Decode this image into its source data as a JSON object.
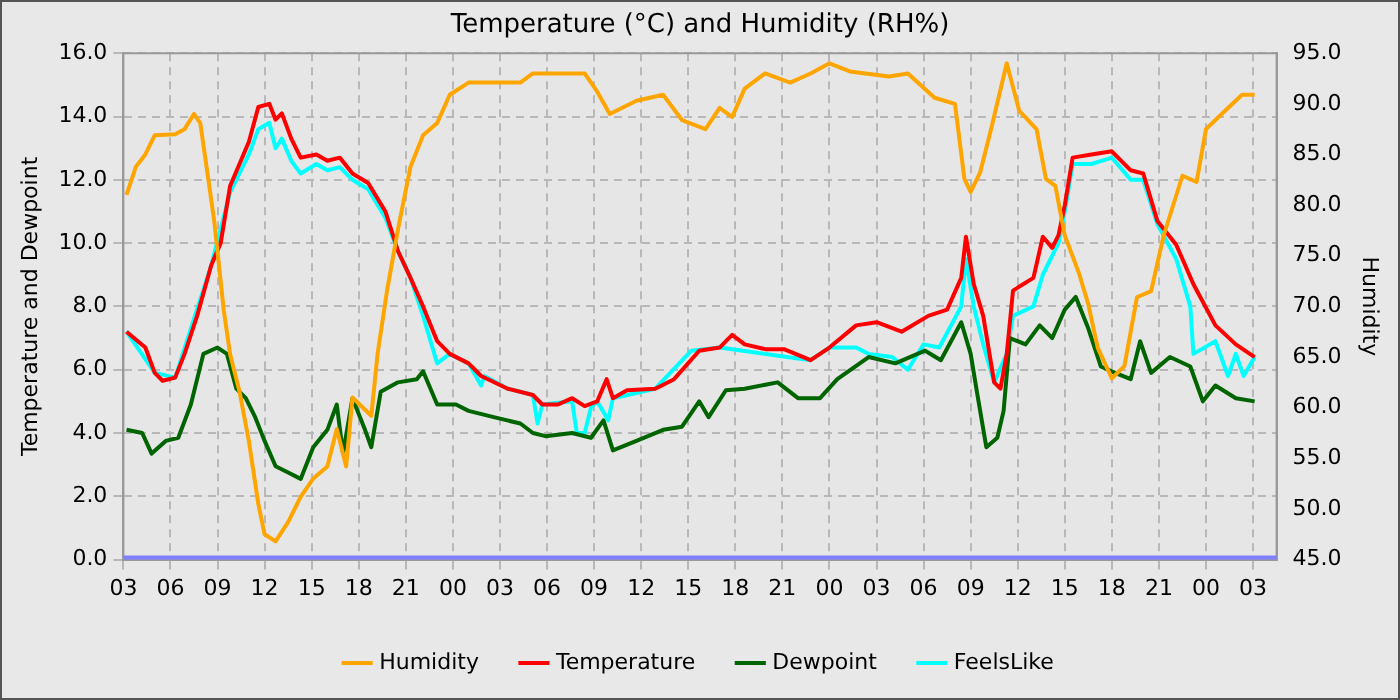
{
  "chart_data": {
    "type": "line",
    "title": "Temperature (°C) and Humidity (RH%)",
    "ylabel": "Temperature and Dewpoint",
    "y2label": "Humidity",
    "xlim": [
      3,
      76.5
    ],
    "xticks": [
      {
        "value": 3,
        "label": "03"
      },
      {
        "value": 6,
        "label": "06"
      },
      {
        "value": 9,
        "label": "09"
      },
      {
        "value": 12,
        "label": "12"
      },
      {
        "value": 15,
        "label": "15"
      },
      {
        "value": 18,
        "label": "18"
      },
      {
        "value": 21,
        "label": "21"
      },
      {
        "value": 24,
        "label": "00"
      },
      {
        "value": 27,
        "label": "03"
      },
      {
        "value": 30,
        "label": "06"
      },
      {
        "value": 33,
        "label": "09"
      },
      {
        "value": 36,
        "label": "12"
      },
      {
        "value": 39,
        "label": "15"
      },
      {
        "value": 42,
        "label": "18"
      },
      {
        "value": 45,
        "label": "21"
      },
      {
        "value": 48,
        "label": "00"
      },
      {
        "value": 51,
        "label": "03"
      },
      {
        "value": 54,
        "label": "06"
      },
      {
        "value": 57,
        "label": "09"
      },
      {
        "value": 60,
        "label": "12"
      },
      {
        "value": 63,
        "label": "15"
      },
      {
        "value": 66,
        "label": "18"
      },
      {
        "value": 69,
        "label": "21"
      },
      {
        "value": 72,
        "label": "00"
      },
      {
        "value": 75,
        "label": "03"
      }
    ],
    "ylim": [
      0,
      16
    ],
    "yticks": [
      {
        "value": 0,
        "label": "0.0"
      },
      {
        "value": 2,
        "label": "2.0"
      },
      {
        "value": 4,
        "label": "4.0"
      },
      {
        "value": 6,
        "label": "6.0"
      },
      {
        "value": 8,
        "label": "8.0"
      },
      {
        "value": 10,
        "label": "10.0"
      },
      {
        "value": 12,
        "label": "12.0"
      },
      {
        "value": 14,
        "label": "14.0"
      },
      {
        "value": 16,
        "label": "16.0"
      }
    ],
    "y2lim": [
      45,
      95
    ],
    "y2ticks": [
      {
        "value": 45,
        "label": "45.0"
      },
      {
        "value": 50,
        "label": "50.0"
      },
      {
        "value": 55,
        "label": "55.0"
      },
      {
        "value": 60,
        "label": "60.0"
      },
      {
        "value": 65,
        "label": "65.0"
      },
      {
        "value": 70,
        "label": "70.0"
      },
      {
        "value": 75,
        "label": "75.0"
      },
      {
        "value": 80,
        "label": "80.0"
      },
      {
        "value": 85,
        "label": "85.0"
      },
      {
        "value": 90,
        "label": "90.0"
      },
      {
        "value": 95,
        "label": "95.0"
      }
    ],
    "grid": true,
    "legend": "bottom",
    "marker": "none",
    "line_style": "solid",
    "ref_lines": [
      {
        "axis": "y",
        "value": 0,
        "color": "#8080ff"
      }
    ],
    "series": [
      {
        "name": "FeelsLike",
        "color": "#00ffff",
        "x": [
          3.2,
          5,
          6.3,
          8.6,
          9.8,
          10.4,
          11,
          11.6,
          12.3,
          12.7,
          13.1,
          13.7,
          14.3,
          15.3,
          16,
          16.8,
          17.6,
          18.6,
          19.7,
          20.5,
          21.3,
          22.1,
          23,
          23.8,
          25,
          25.8,
          26,
          27.5,
          29.1,
          29.4,
          29.7,
          31.6,
          31.9,
          32.4,
          32.8,
          33.2,
          33.9,
          34.2,
          36.9,
          39.2,
          41,
          46.8,
          48,
          49.7,
          50.5,
          52,
          53,
          54,
          55,
          56.4,
          56.7,
          57.2,
          57.8,
          58.5,
          59.3,
          59.7,
          61,
          61.6,
          62.2,
          62.6,
          63,
          63.5,
          64.7,
          66,
          67.2,
          68,
          68.9,
          70.1,
          71,
          71.2,
          72.6,
          73.4,
          73.9,
          74.4,
          75.1
        ],
        "values": [
          7.2,
          5.9,
          5.75,
          9.3,
          11.6,
          12.2,
          12.8,
          13.6,
          13.8,
          13,
          13.3,
          12.6,
          12.2,
          12.5,
          12.3,
          12.4,
          12,
          11.7,
          10.8,
          9.75,
          8.9,
          7.7,
          6.2,
          6.5,
          6.2,
          5.5,
          5.8,
          5.4,
          5.2,
          4.3,
          4.9,
          5,
          4,
          4,
          4.8,
          5,
          4.4,
          5.1,
          5.4,
          6.6,
          6.7,
          6.3,
          6.7,
          6.7,
          6.5,
          6.4,
          6,
          6.8,
          6.7,
          8,
          9.5,
          8,
          6.8,
          5.6,
          6.5,
          7.7,
          8,
          9,
          9.6,
          10,
          11,
          12.5,
          12.5,
          12.7,
          12,
          12,
          10.6,
          9.5,
          8,
          6.5,
          6.9,
          5.8,
          6.5,
          5.8,
          6.4
        ]
      },
      {
        "name": "Dewpoint",
        "color": "#006400",
        "x": [
          3.2,
          4.2,
          4.8,
          5.7,
          6.5,
          7.3,
          8.1,
          9,
          9.6,
          10.2,
          10.8,
          11.4,
          12,
          12.7,
          13.5,
          14.3,
          15.1,
          16,
          16.6,
          17,
          17.6,
          18.4,
          18.8,
          19.4,
          20.5,
          21.7,
          22.1,
          23,
          24.2,
          25,
          26.6,
          28.3,
          29.1,
          29.9,
          31.6,
          32.8,
          33.6,
          34.2,
          35.7,
          37.4,
          38.6,
          39.7,
          40.3,
          41.4,
          42.6,
          44.7,
          46,
          47.4,
          48.5,
          50.5,
          52.2,
          54.1,
          55.1,
          56.4,
          57,
          57.4,
          58,
          58.7,
          59.1,
          59.5,
          60.5,
          61.4,
          62.2,
          63,
          63.7,
          64.5,
          65.3,
          66.2,
          67.2,
          67.8,
          68.5,
          69.7,
          71,
          71.8,
          72.6,
          73.9,
          75.1
        ],
        "values": [
          4.1,
          4,
          3.35,
          3.75,
          3.85,
          4.9,
          6.5,
          6.7,
          6.5,
          5.4,
          5.1,
          4.5,
          3.75,
          2.95,
          2.75,
          2.55,
          3.55,
          4.1,
          4.9,
          3.35,
          5.1,
          4.1,
          3.55,
          5.3,
          5.6,
          5.7,
          5.95,
          4.9,
          4.9,
          4.7,
          4.5,
          4.3,
          4,
          3.9,
          4,
          3.85,
          4.4,
          3.45,
          3.75,
          4.1,
          4.2,
          5,
          4.5,
          5.35,
          5.4,
          5.6,
          5.1,
          5.1,
          5.7,
          6.4,
          6.2,
          6.6,
          6.3,
          7.5,
          6.5,
          5.3,
          3.55,
          3.85,
          4.7,
          7,
          6.8,
          7.4,
          7,
          7.9,
          8.3,
          7.3,
          6.1,
          5.9,
          5.7,
          6.9,
          5.9,
          6.4,
          6.1,
          5,
          5.5,
          5.1,
          5
        ]
      },
      {
        "name": "Temperature",
        "color": "#ff0000",
        "x": [
          3.2,
          4.4,
          5,
          5.5,
          6.3,
          6.9,
          7.7,
          8.6,
          9.2,
          9.8,
          10.4,
          11,
          11.6,
          12.3,
          12.7,
          13.1,
          13.7,
          14.3,
          15.3,
          16,
          16.8,
          17.6,
          18.6,
          19.7,
          20.5,
          21.3,
          22.1,
          23,
          23.8,
          25,
          25.8,
          27.5,
          29.1,
          29.7,
          30.7,
          31.6,
          32.4,
          33.2,
          33.8,
          34.2,
          35.1,
          36.9,
          38.1,
          39.7,
          41,
          41.8,
          42.6,
          43.9,
          45.1,
          46.8,
          48,
          49.7,
          51,
          52.6,
          54.3,
          55.5,
          56.4,
          56.7,
          57.2,
          57.8,
          58.5,
          58.9,
          59.3,
          59.7,
          61,
          61.6,
          62.2,
          62.6,
          63,
          63.5,
          64.7,
          66,
          67.2,
          68,
          68.9,
          70.1,
          71.2,
          72.6,
          73.9,
          75.1
        ],
        "values": [
          7.2,
          6.7,
          5.9,
          5.65,
          5.75,
          6.5,
          7.7,
          9.3,
          10,
          11.8,
          12.5,
          13.2,
          14.3,
          14.4,
          13.9,
          14.1,
          13.3,
          12.7,
          12.8,
          12.6,
          12.7,
          12.2,
          11.9,
          11,
          9.75,
          8.9,
          8,
          6.9,
          6.5,
          6.2,
          5.8,
          5.4,
          5.2,
          4.9,
          4.9,
          5.1,
          4.85,
          5,
          5.7,
          5.1,
          5.35,
          5.4,
          5.7,
          6.6,
          6.7,
          7.1,
          6.8,
          6.65,
          6.65,
          6.3,
          6.7,
          7.4,
          7.5,
          7.2,
          7.7,
          7.9,
          8.9,
          10.2,
          8.7,
          7.7,
          5.6,
          5.4,
          6.5,
          8.5,
          8.9,
          10.2,
          9.85,
          10.25,
          11.2,
          12.7,
          12.8,
          12.9,
          12.3,
          12.2,
          10.7,
          9.95,
          8.7,
          7.4,
          6.8,
          6.4
        ]
      },
      {
        "name": "Humidity",
        "color": "#ffa500",
        "axis": "y2",
        "x": [
          3.2,
          3.8,
          4.4,
          5,
          6.3,
          6.9,
          7.5,
          7.9,
          8.3,
          8.8,
          9.4,
          9.8,
          10.4,
          11,
          11.6,
          12,
          12.7,
          13.5,
          14.3,
          15.1,
          16,
          16.6,
          17.2,
          17.6,
          18.4,
          18.8,
          19.2,
          19.8,
          20.5,
          21.3,
          22.1,
          23,
          23.8,
          25,
          28.3,
          29.1,
          32.4,
          33.2,
          34,
          35.7,
          37.4,
          38.6,
          40.1,
          41,
          41.8,
          42.6,
          43.9,
          45.5,
          46.8,
          48,
          49.3,
          51.8,
          53,
          54.7,
          56,
          56.6,
          57,
          57.6,
          58.3,
          59.3,
          60.1,
          61.2,
          61.8,
          62.4,
          63,
          63.9,
          64.5,
          65.1,
          66,
          66.8,
          67.6,
          68.5,
          69.3,
          70.5,
          71.4,
          72,
          73,
          74.3,
          75.1
        ],
        "values": [
          81,
          83.8,
          85,
          86.9,
          87,
          87.5,
          89,
          88.1,
          83.8,
          78.3,
          69.6,
          65.3,
          61.6,
          56.7,
          50.5,
          47.5,
          46.8,
          48.7,
          51.2,
          53,
          54.2,
          57.9,
          54.2,
          61,
          59.8,
          59.2,
          65.3,
          71.5,
          77.6,
          83.8,
          86.9,
          88.1,
          90.9,
          92.1,
          92.1,
          93,
          93,
          91.2,
          89,
          90.3,
          90.9,
          88.4,
          87.5,
          89.6,
          88.7,
          91.5,
          93,
          92.1,
          93,
          94,
          93.2,
          92.7,
          93,
          90.6,
          90,
          82.6,
          81.3,
          83.2,
          87.5,
          94,
          89.3,
          87.5,
          82.6,
          81.9,
          77,
          73.3,
          70.2,
          65.9,
          62.9,
          64.1,
          70.9,
          71.5,
          77,
          82.9,
          82.3,
          87.5,
          89,
          90.9,
          90.9
        ]
      }
    ]
  }
}
